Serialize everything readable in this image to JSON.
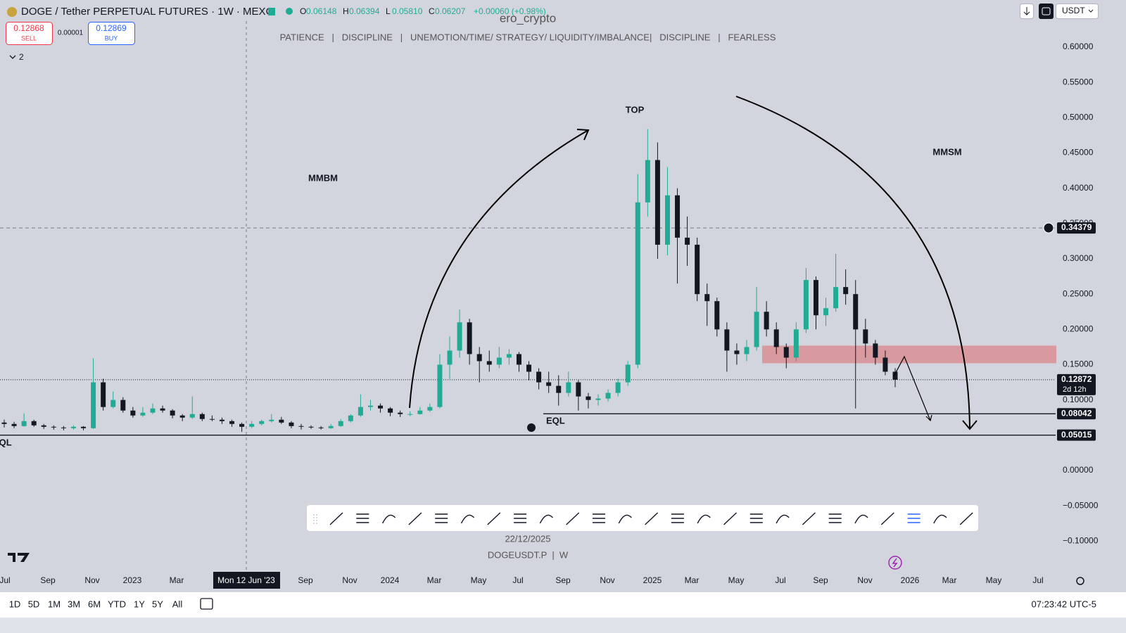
{
  "header": {
    "symbol": "DOGE / Tether PERPETUAL FUTURES · 1W · MEXC",
    "ohlc": [
      {
        "k": "O",
        "v": "0.06148"
      },
      {
        "k": "H",
        "v": "0.06394"
      },
      {
        "k": "L",
        "v": "0.05810"
      },
      {
        "k": "C",
        "v": "0.06207"
      }
    ],
    "change": "+0.00060 (+0.98%)",
    "sell_price": "0.12868",
    "sell": "SELL",
    "spread": "0.00001",
    "buy_price": "0.12869",
    "buy": "BUY",
    "indicators": "2",
    "currency": "USDT",
    "author": "ero_crypto",
    "motto": "PATIENCE   |   DISCIPLINE   |   UNEMOTION/TIME/ STRATEGY/ LIQUIDITY/IMBALANCE|   DISCIPLINE   |   FEARLESS"
  },
  "chart_data": {
    "type": "candlestick",
    "up_color": "#22ab94",
    "down_color": "#131722",
    "ylim": [
      -0.12,
      0.62
    ],
    "yticks": [
      {
        "value": 0.6,
        "label": "0.60000"
      },
      {
        "value": 0.55,
        "label": "0.55000"
      },
      {
        "value": 0.5,
        "label": "0.50000"
      },
      {
        "value": 0.45,
        "label": "0.45000"
      },
      {
        "value": 0.4,
        "label": "0.40000"
      },
      {
        "value": 0.35,
        "label": "0.35000"
      },
      {
        "value": 0.3,
        "label": "0.30000"
      },
      {
        "value": 0.25,
        "label": "0.25000"
      },
      {
        "value": 0.2,
        "label": "0.20000"
      },
      {
        "value": 0.15,
        "label": "0.15000"
      },
      {
        "value": 0.1,
        "label": "0.10000"
      },
      {
        "value": 0,
        "label": "0.00000"
      },
      {
        "value": -0.05,
        "label": "−0.05000"
      },
      {
        "value": -0.1,
        "label": "−0.10000"
      }
    ],
    "xticks": [
      "Jul",
      "Sep",
      "Nov",
      "2023",
      "Mar",
      "Sep",
      "Nov",
      "2024",
      "Mar",
      "May",
      "Jul",
      "Sep",
      "Nov",
      "2025",
      "Mar",
      "May",
      "Jul",
      "Sep",
      "Nov",
      "2026",
      "Mar",
      "May",
      "Jul"
    ],
    "ohlc": [
      [
        0.068,
        0.072,
        0.061,
        0.066
      ],
      [
        0.066,
        0.069,
        0.06,
        0.063
      ],
      [
        0.063,
        0.081,
        0.062,
        0.07
      ],
      [
        0.07,
        0.072,
        0.062,
        0.064
      ],
      [
        0.064,
        0.066,
        0.059,
        0.062
      ],
      [
        0.062,
        0.064,
        0.058,
        0.061
      ],
      [
        0.061,
        0.063,
        0.057,
        0.06
      ],
      [
        0.06,
        0.064,
        0.058,
        0.062
      ],
      [
        0.062,
        0.063,
        0.057,
        0.06
      ],
      [
        0.06,
        0.159,
        0.059,
        0.125
      ],
      [
        0.125,
        0.13,
        0.085,
        0.09
      ],
      [
        0.09,
        0.112,
        0.088,
        0.1
      ],
      [
        0.1,
        0.104,
        0.082,
        0.085
      ],
      [
        0.085,
        0.09,
        0.075,
        0.078
      ],
      [
        0.078,
        0.09,
        0.076,
        0.082
      ],
      [
        0.082,
        0.095,
        0.08,
        0.088
      ],
      [
        0.088,
        0.092,
        0.082,
        0.085
      ],
      [
        0.085,
        0.087,
        0.074,
        0.078
      ],
      [
        0.078,
        0.08,
        0.07,
        0.075
      ],
      [
        0.075,
        0.105,
        0.073,
        0.08
      ],
      [
        0.08,
        0.082,
        0.07,
        0.073
      ],
      [
        0.073,
        0.078,
        0.07,
        0.072
      ],
      [
        0.072,
        0.075,
        0.066,
        0.07
      ],
      [
        0.07,
        0.072,
        0.062,
        0.066
      ],
      [
        0.066,
        0.068,
        0.055,
        0.062
      ],
      [
        0.062,
        0.07,
        0.06,
        0.066
      ],
      [
        0.066,
        0.072,
        0.064,
        0.07
      ],
      [
        0.07,
        0.08,
        0.068,
        0.072
      ],
      [
        0.072,
        0.076,
        0.066,
        0.068
      ],
      [
        0.068,
        0.07,
        0.06,
        0.063
      ],
      [
        0.063,
        0.066,
        0.058,
        0.062
      ],
      [
        0.062,
        0.064,
        0.059,
        0.061
      ],
      [
        0.061,
        0.063,
        0.058,
        0.06
      ],
      [
        0.06,
        0.066,
        0.059,
        0.063
      ],
      [
        0.063,
        0.073,
        0.062,
        0.07
      ],
      [
        0.07,
        0.08,
        0.068,
        0.078
      ],
      [
        0.078,
        0.108,
        0.076,
        0.09
      ],
      [
        0.09,
        0.1,
        0.085,
        0.092
      ],
      [
        0.092,
        0.095,
        0.082,
        0.088
      ],
      [
        0.088,
        0.09,
        0.077,
        0.082
      ],
      [
        0.082,
        0.085,
        0.076,
        0.08
      ],
      [
        0.08,
        0.084,
        0.077,
        0.08
      ],
      [
        0.08,
        0.09,
        0.079,
        0.085
      ],
      [
        0.085,
        0.095,
        0.083,
        0.09
      ],
      [
        0.09,
        0.165,
        0.088,
        0.15
      ],
      [
        0.15,
        0.19,
        0.13,
        0.17
      ],
      [
        0.17,
        0.228,
        0.16,
        0.21
      ],
      [
        0.21,
        0.215,
        0.15,
        0.165
      ],
      [
        0.165,
        0.175,
        0.125,
        0.155
      ],
      [
        0.155,
        0.17,
        0.14,
        0.15
      ],
      [
        0.15,
        0.175,
        0.145,
        0.16
      ],
      [
        0.16,
        0.172,
        0.15,
        0.165
      ],
      [
        0.165,
        0.168,
        0.14,
        0.15
      ],
      [
        0.15,
        0.155,
        0.128,
        0.14
      ],
      [
        0.14,
        0.145,
        0.115,
        0.125
      ],
      [
        0.125,
        0.14,
        0.11,
        0.12
      ],
      [
        0.12,
        0.135,
        0.092,
        0.11
      ],
      [
        0.11,
        0.14,
        0.105,
        0.125
      ],
      [
        0.125,
        0.128,
        0.085,
        0.105
      ],
      [
        0.105,
        0.11,
        0.088,
        0.1
      ],
      [
        0.1,
        0.108,
        0.092,
        0.102
      ],
      [
        0.102,
        0.115,
        0.098,
        0.11
      ],
      [
        0.11,
        0.13,
        0.105,
        0.125
      ],
      [
        0.125,
        0.155,
        0.12,
        0.15
      ],
      [
        0.15,
        0.42,
        0.145,
        0.38
      ],
      [
        0.38,
        0.484,
        0.36,
        0.44
      ],
      [
        0.44,
        0.465,
        0.3,
        0.32
      ],
      [
        0.32,
        0.43,
        0.305,
        0.39
      ],
      [
        0.39,
        0.4,
        0.265,
        0.33
      ],
      [
        0.33,
        0.36,
        0.29,
        0.32
      ],
      [
        0.32,
        0.33,
        0.24,
        0.25
      ],
      [
        0.25,
        0.265,
        0.205,
        0.24
      ],
      [
        0.24,
        0.245,
        0.19,
        0.2
      ],
      [
        0.2,
        0.21,
        0.14,
        0.17
      ],
      [
        0.17,
        0.18,
        0.15,
        0.165
      ],
      [
        0.165,
        0.185,
        0.155,
        0.175
      ],
      [
        0.175,
        0.26,
        0.17,
        0.225
      ],
      [
        0.225,
        0.24,
        0.19,
        0.2
      ],
      [
        0.2,
        0.21,
        0.165,
        0.175
      ],
      [
        0.175,
        0.18,
        0.145,
        0.16
      ],
      [
        0.16,
        0.21,
        0.155,
        0.2
      ],
      [
        0.2,
        0.287,
        0.195,
        0.27
      ],
      [
        0.27,
        0.275,
        0.2,
        0.22
      ],
      [
        0.22,
        0.245,
        0.205,
        0.23
      ],
      [
        0.23,
        0.307,
        0.225,
        0.26
      ],
      [
        0.26,
        0.285,
        0.235,
        0.25
      ],
      [
        0.25,
        0.27,
        0.088,
        0.2
      ],
      [
        0.2,
        0.215,
        0.16,
        0.18
      ],
      [
        0.18,
        0.185,
        0.15,
        0.16
      ],
      [
        0.16,
        0.17,
        0.135,
        0.14
      ],
      [
        0.14,
        0.145,
        0.118,
        0.12872
      ]
    ],
    "zone": [
      0.152,
      0.177
    ],
    "zone_color": "#d99a9f",
    "price_lines": [
      {
        "value": 0.34379,
        "label": "0.34379"
      },
      {
        "value": 0.12872,
        "label": "0.12872"
      },
      {
        "value": 0.08042,
        "label": "0.08042"
      },
      {
        "value": 0.05015,
        "label": "0.05015"
      }
    ],
    "countdown": "2d 12h",
    "crosshair_date": "Mon 12 Jun '23",
    "annotations": {
      "top": "TOP",
      "mmbm": "MMBM",
      "mmsm": "MMSM",
      "eql_recent": "EQL",
      "eql_old": "EQL"
    },
    "date_label": "22/12/2025",
    "symbol_label": "DOGEUSDT.P  |  W"
  },
  "footer": {
    "ranges": [
      "1D",
      "5D",
      "1M",
      "3M",
      "6M",
      "YTD",
      "1Y",
      "5Y",
      "All"
    ],
    "clock": "07:23:42 UTC-5"
  }
}
